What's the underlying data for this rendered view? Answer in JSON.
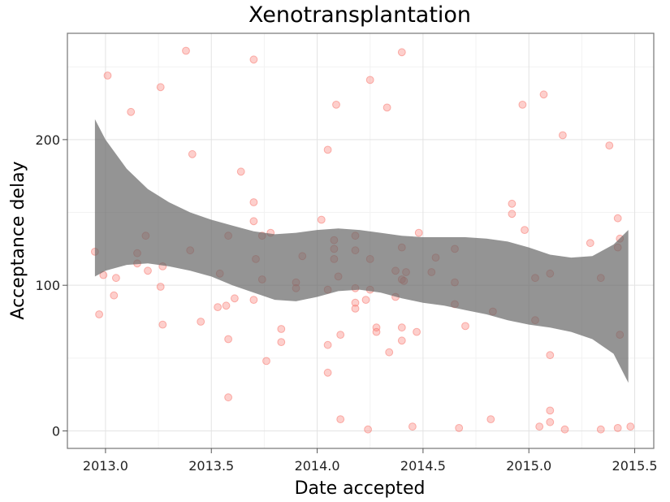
{
  "chart_data": {
    "type": "scatter",
    "title": "Xenotransplantation",
    "xlabel": "Date accepted",
    "ylabel": "Acceptance delay",
    "xlim": [
      2012.82,
      2015.59
    ],
    "ylim": [
      -12,
      273
    ],
    "xticks": [
      2013.0,
      2013.5,
      2014.0,
      2014.5,
      2015.0,
      2015.5
    ],
    "xtick_labels": [
      "2013.0",
      "2013.5",
      "2014.0",
      "2014.5",
      "2015.0",
      "2015.5"
    ],
    "yticks": [
      0,
      100,
      200
    ],
    "ytick_labels": [
      "0",
      "100",
      "200"
    ],
    "x_minor_gridlines": [
      2013.25,
      2013.75,
      2014.25,
      2014.75,
      2015.25
    ],
    "y_minor_gridlines": [
      50,
      150,
      250
    ],
    "grid": true,
    "point_color": "#F8766D",
    "band_color": "#666666",
    "points": [
      [
        2012.95,
        123
      ],
      [
        2012.97,
        80
      ],
      [
        2012.99,
        107
      ],
      [
        2013.01,
        244
      ],
      [
        2013.04,
        93
      ],
      [
        2013.05,
        105
      ],
      [
        2013.12,
        219
      ],
      [
        2013.15,
        122
      ],
      [
        2013.15,
        115
      ],
      [
        2013.19,
        134
      ],
      [
        2013.2,
        110
      ],
      [
        2013.26,
        236
      ],
      [
        2013.26,
        99
      ],
      [
        2013.27,
        113
      ],
      [
        2013.27,
        73
      ],
      [
        2013.38,
        261
      ],
      [
        2013.4,
        124
      ],
      [
        2013.41,
        190
      ],
      [
        2013.45,
        75
      ],
      [
        2013.53,
        85
      ],
      [
        2013.54,
        108
      ],
      [
        2013.57,
        86
      ],
      [
        2013.58,
        134
      ],
      [
        2013.58,
        63
      ],
      [
        2013.58,
        23
      ],
      [
        2013.61,
        91
      ],
      [
        2013.64,
        178
      ],
      [
        2013.7,
        255
      ],
      [
        2013.7,
        157
      ],
      [
        2013.7,
        144
      ],
      [
        2013.7,
        90
      ],
      [
        2013.71,
        118
      ],
      [
        2013.74,
        134
      ],
      [
        2013.74,
        104
      ],
      [
        2013.76,
        48
      ],
      [
        2013.78,
        136
      ],
      [
        2013.83,
        70
      ],
      [
        2013.83,
        61
      ],
      [
        2013.9,
        102
      ],
      [
        2013.9,
        98
      ],
      [
        2013.93,
        120
      ],
      [
        2014.02,
        145
      ],
      [
        2014.05,
        193
      ],
      [
        2014.05,
        97
      ],
      [
        2014.05,
        59
      ],
      [
        2014.05,
        40
      ],
      [
        2014.08,
        131
      ],
      [
        2014.08,
        125
      ],
      [
        2014.09,
        224
      ],
      [
        2014.08,
        118
      ],
      [
        2014.1,
        106
      ],
      [
        2014.11,
        66
      ],
      [
        2014.11,
        8
      ],
      [
        2014.18,
        134
      ],
      [
        2014.18,
        124
      ],
      [
        2014.18,
        98
      ],
      [
        2014.18,
        88
      ],
      [
        2014.18,
        84
      ],
      [
        2014.23,
        90
      ],
      [
        2014.25,
        241
      ],
      [
        2014.25,
        118
      ],
      [
        2014.25,
        97
      ],
      [
        2014.24,
        1
      ],
      [
        2014.28,
        71
      ],
      [
        2014.28,
        68
      ],
      [
        2014.33,
        222
      ],
      [
        2014.34,
        54
      ],
      [
        2014.37,
        110
      ],
      [
        2014.37,
        92
      ],
      [
        2014.4,
        260
      ],
      [
        2014.4,
        126
      ],
      [
        2014.4,
        104
      ],
      [
        2014.4,
        71
      ],
      [
        2014.4,
        62
      ],
      [
        2014.41,
        103
      ],
      [
        2014.42,
        109
      ],
      [
        2014.45,
        3
      ],
      [
        2014.47,
        68
      ],
      [
        2014.48,
        136
      ],
      [
        2014.54,
        109
      ],
      [
        2014.56,
        119
      ],
      [
        2014.65,
        125
      ],
      [
        2014.65,
        102
      ],
      [
        2014.65,
        87
      ],
      [
        2014.67,
        2
      ],
      [
        2014.7,
        72
      ],
      [
        2014.82,
        8
      ],
      [
        2014.83,
        82
      ],
      [
        2014.92,
        156
      ],
      [
        2014.92,
        149
      ],
      [
        2014.97,
        224
      ],
      [
        2014.98,
        138
      ],
      [
        2015.03,
        105
      ],
      [
        2015.03,
        76
      ],
      [
        2015.05,
        3
      ],
      [
        2015.07,
        231
      ],
      [
        2015.1,
        108
      ],
      [
        2015.1,
        52
      ],
      [
        2015.1,
        14
      ],
      [
        2015.1,
        6
      ],
      [
        2015.16,
        203
      ],
      [
        2015.17,
        1
      ],
      [
        2015.29,
        129
      ],
      [
        2015.34,
        105
      ],
      [
        2015.34,
        1
      ],
      [
        2015.38,
        196
      ],
      [
        2015.42,
        146
      ],
      [
        2015.42,
        126
      ],
      [
        2015.43,
        132
      ],
      [
        2015.43,
        66
      ],
      [
        2015.42,
        2
      ],
      [
        2015.48,
        3
      ]
    ],
    "confidence_band": {
      "x": [
        2012.95,
        2013.0,
        2013.1,
        2013.2,
        2013.3,
        2013.4,
        2013.5,
        2013.6,
        2013.7,
        2013.8,
        2013.9,
        2014.0,
        2014.1,
        2014.2,
        2014.3,
        2014.4,
        2014.5,
        2014.6,
        2014.7,
        2014.8,
        2014.9,
        2015.0,
        2015.1,
        2015.2,
        2015.3,
        2015.4,
        2015.47
      ],
      "upper": [
        214,
        200,
        180,
        166,
        157,
        150,
        145,
        141,
        137,
        135,
        136,
        138,
        139,
        138,
        136,
        134,
        133,
        133,
        133,
        132,
        130,
        126,
        121,
        119,
        120,
        128,
        138
      ],
      "lower": [
        106,
        110,
        114,
        115,
        113,
        110,
        106,
        100,
        95,
        90,
        89,
        92,
        96,
        97,
        95,
        91,
        88,
        86,
        83,
        80,
        76,
        73,
        71,
        68,
        63,
        53,
        33
      ]
    }
  }
}
